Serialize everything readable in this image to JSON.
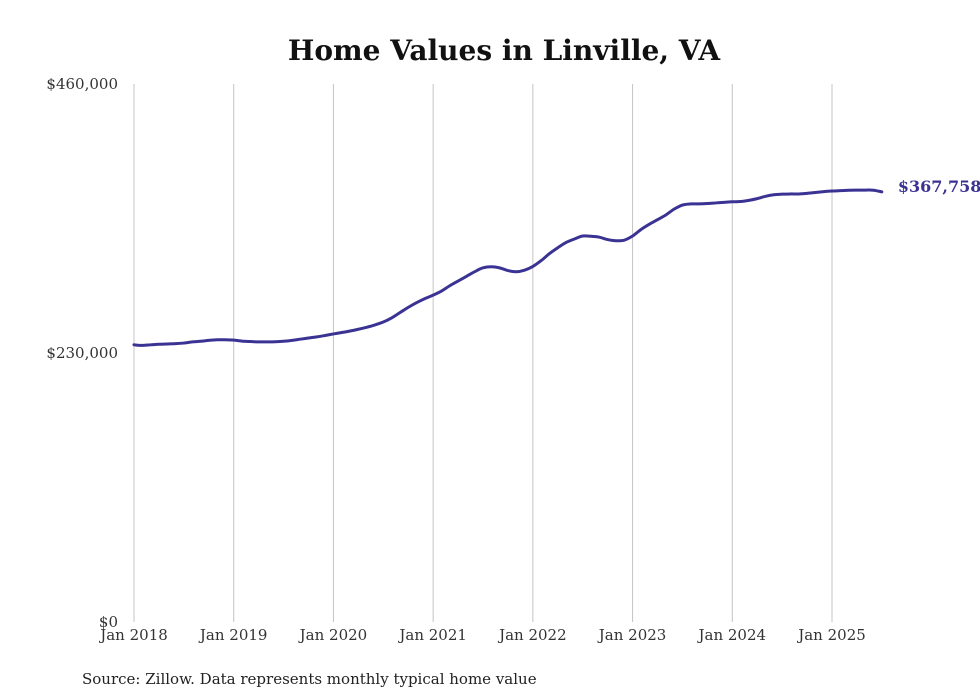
{
  "chart_data": {
    "type": "line",
    "title": "Home Values in Linville, VA",
    "xlabel": "",
    "ylabel": "",
    "ylim": [
      0,
      460000
    ],
    "yticks": [
      {
        "value": 0,
        "label": "$0"
      },
      {
        "value": 230000,
        "label": "$230,000"
      },
      {
        "value": 460000,
        "label": "$460,000"
      }
    ],
    "xticks": [
      {
        "value": "2018-01",
        "label": "Jan 2018"
      },
      {
        "value": "2019-01",
        "label": "Jan 2019"
      },
      {
        "value": "2020-01",
        "label": "Jan 2020"
      },
      {
        "value": "2021-01",
        "label": "Jan 2021"
      },
      {
        "value": "2022-01",
        "label": "Jan 2022"
      },
      {
        "value": "2023-01",
        "label": "Jan 2023"
      },
      {
        "value": "2024-01",
        "label": "Jan 2024"
      },
      {
        "value": "2025-01",
        "label": "Jan 2025"
      }
    ],
    "grid": {
      "vertical": true,
      "horizontal": false
    },
    "line_color": "#3b3394",
    "end_label": "$367,758",
    "series": [
      {
        "points": [
          [
            "2018-01",
            237000
          ],
          [
            "2018-02",
            236500
          ],
          [
            "2018-03",
            237000
          ],
          [
            "2018-04",
            237500
          ],
          [
            "2018-05",
            237700
          ],
          [
            "2018-06",
            238000
          ],
          [
            "2018-07",
            238500
          ],
          [
            "2018-08",
            239500
          ],
          [
            "2018-09",
            240000
          ],
          [
            "2018-10",
            240800
          ],
          [
            "2018-11",
            241300
          ],
          [
            "2018-12",
            241300
          ],
          [
            "2019-01",
            241000
          ],
          [
            "2019-02",
            240200
          ],
          [
            "2019-03",
            239800
          ],
          [
            "2019-04",
            239500
          ],
          [
            "2019-05",
            239500
          ],
          [
            "2019-06",
            239600
          ],
          [
            "2019-07",
            240000
          ],
          [
            "2019-08",
            240800
          ],
          [
            "2019-09",
            241800
          ],
          [
            "2019-10",
            242800
          ],
          [
            "2019-11",
            243800
          ],
          [
            "2019-12",
            245000
          ],
          [
            "2020-01",
            246300
          ],
          [
            "2020-02",
            247500
          ],
          [
            "2020-03",
            248800
          ],
          [
            "2020-04",
            250300
          ],
          [
            "2020-05",
            252000
          ],
          [
            "2020-06",
            254000
          ],
          [
            "2020-07",
            256500
          ],
          [
            "2020-08",
            260000
          ],
          [
            "2020-09",
            264500
          ],
          [
            "2020-10",
            269000
          ],
          [
            "2020-11",
            273000
          ],
          [
            "2020-12",
            276500
          ],
          [
            "2021-01",
            279500
          ],
          [
            "2021-02",
            283000
          ],
          [
            "2021-03",
            287500
          ],
          [
            "2021-04",
            291500
          ],
          [
            "2021-05",
            295500
          ],
          [
            "2021-06",
            299500
          ],
          [
            "2021-07",
            302800
          ],
          [
            "2021-08",
            303800
          ],
          [
            "2021-09",
            302800
          ],
          [
            "2021-10",
            300500
          ],
          [
            "2021-11",
            299500
          ],
          [
            "2021-12",
            300800
          ],
          [
            "2022-01",
            304000
          ],
          [
            "2022-02",
            309000
          ],
          [
            "2022-03",
            315000
          ],
          [
            "2022-04",
            320000
          ],
          [
            "2022-05",
            324500
          ],
          [
            "2022-06",
            327500
          ],
          [
            "2022-07",
            330000
          ],
          [
            "2022-08",
            329800
          ],
          [
            "2022-09",
            329000
          ],
          [
            "2022-10",
            327000
          ],
          [
            "2022-11",
            326000
          ],
          [
            "2022-12",
            326500
          ],
          [
            "2023-01",
            330000
          ],
          [
            "2023-02",
            335500
          ],
          [
            "2023-03",
            340000
          ],
          [
            "2023-04",
            344000
          ],
          [
            "2023-05",
            348000
          ],
          [
            "2023-06",
            353000
          ],
          [
            "2023-07",
            356500
          ],
          [
            "2023-08",
            357500
          ],
          [
            "2023-09",
            357500
          ],
          [
            "2023-10",
            357800
          ],
          [
            "2023-11",
            358300
          ],
          [
            "2023-12",
            358800
          ],
          [
            "2024-01",
            359300
          ],
          [
            "2024-02",
            359500
          ],
          [
            "2024-03",
            360500
          ],
          [
            "2024-04",
            362000
          ],
          [
            "2024-05",
            364000
          ],
          [
            "2024-06",
            365300
          ],
          [
            "2024-07",
            365800
          ],
          [
            "2024-08",
            366000
          ],
          [
            "2024-09",
            366000
          ],
          [
            "2024-10",
            366500
          ],
          [
            "2024-11",
            367200
          ],
          [
            "2024-12",
            368000
          ],
          [
            "2025-01",
            368500
          ],
          [
            "2025-02",
            368800
          ],
          [
            "2025-03",
            369200
          ],
          [
            "2025-04",
            369300
          ],
          [
            "2025-05",
            369300
          ],
          [
            "2025-06",
            369200
          ],
          [
            "2025-07",
            367758
          ]
        ]
      }
    ]
  },
  "footer": {
    "source": "Source: Zillow. Data represents monthly typical home value"
  }
}
